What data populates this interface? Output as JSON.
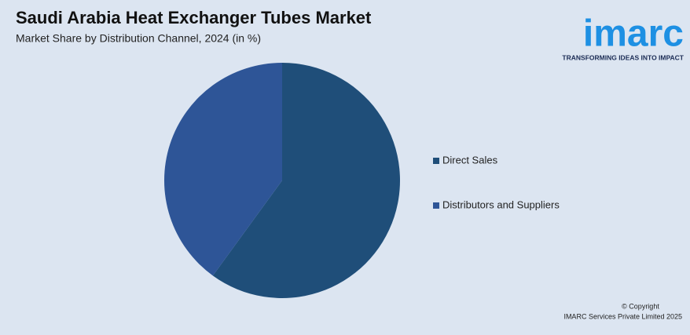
{
  "chart_data": {
    "type": "pie",
    "title": "Saudi Arabia Heat Exchanger Tubes Market",
    "subtitle": "Market Share by Distribution Channel, 2024 (in %)",
    "categories": [
      "Direct Sales",
      "Distributors and Suppliers"
    ],
    "values": [
      60,
      40
    ],
    "colors": [
      "#1f4e79",
      "#2e5597"
    ],
    "legend": "right"
  },
  "logo": {
    "name": "imarc",
    "tagline": "TRANSFORMING IDEAS INTO IMPACT"
  },
  "copyright": [
    "© Copyright",
    "IMARC Services Private Limited 2025"
  ]
}
